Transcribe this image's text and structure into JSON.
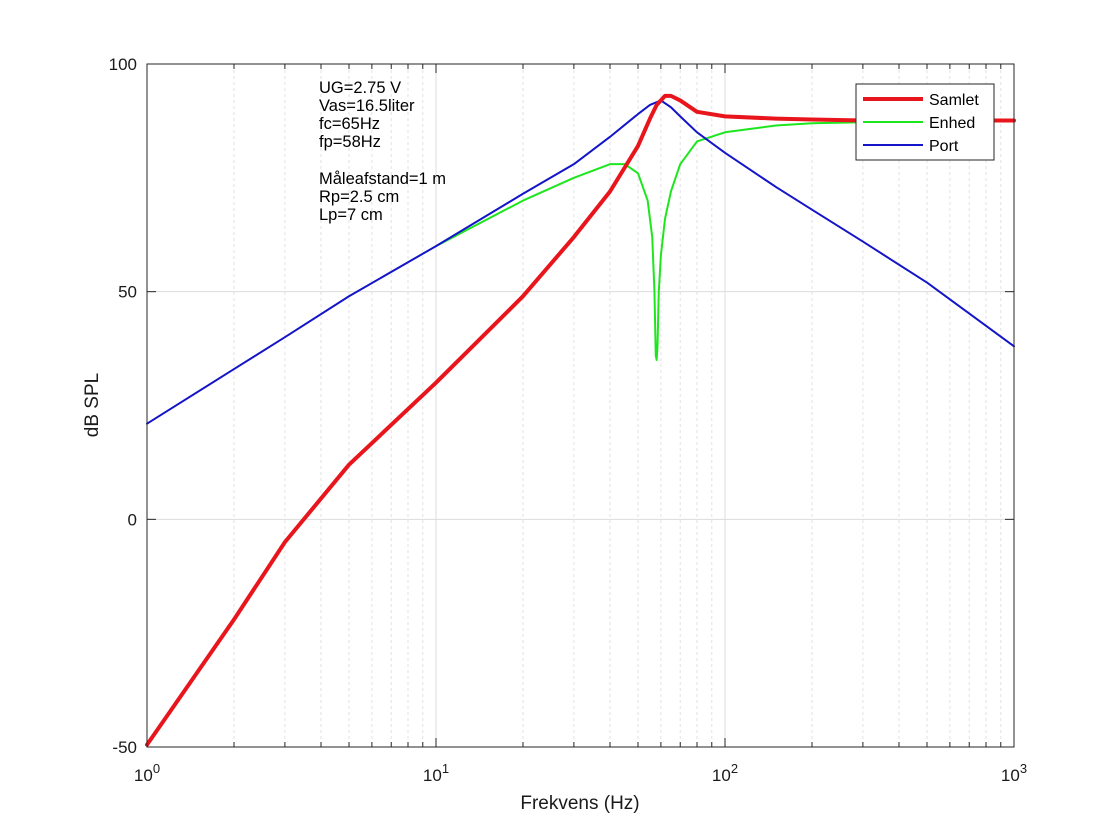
{
  "chart_data": {
    "type": "line",
    "title": "",
    "xlabel": "Frekvens (Hz)",
    "ylabel": "dB SPL",
    "xscale": "log",
    "xlim": [
      1,
      1000
    ],
    "ylim": [
      -50,
      100
    ],
    "grid": true,
    "x_ticks": [
      {
        "base": "10",
        "exp": "0"
      },
      {
        "base": "10",
        "exp": "1"
      },
      {
        "base": "10",
        "exp": "2"
      },
      {
        "base": "10",
        "exp": "3"
      }
    ],
    "y_ticks": [
      "-50",
      "0",
      "50",
      "100"
    ],
    "legend_position": "top-right",
    "annotations": [
      "UG=2.75 V",
      "Vas=16.5liter",
      "fc=65Hz",
      "fp=58Hz",
      "",
      "Måleafstand=1 m",
      "Rp=2.5 cm",
      "Lp=7 cm"
    ],
    "series": [
      {
        "name": "Samlet",
        "color": "#e8161c",
        "points": [
          [
            1,
            -49.5
          ],
          [
            2,
            -22
          ],
          [
            3,
            -5
          ],
          [
            5,
            12
          ],
          [
            10,
            30
          ],
          [
            20,
            49
          ],
          [
            30,
            62
          ],
          [
            40,
            72
          ],
          [
            50,
            82
          ],
          [
            55,
            88
          ],
          [
            58,
            91
          ],
          [
            62,
            93
          ],
          [
            65,
            93
          ],
          [
            70,
            92
          ],
          [
            80,
            89.5
          ],
          [
            100,
            88.5
          ],
          [
            150,
            88
          ],
          [
            200,
            87.8
          ],
          [
            300,
            87.6
          ],
          [
            500,
            87.6
          ],
          [
            1000,
            87.6
          ]
        ]
      },
      {
        "name": "Enhed",
        "color": "#1ee61e",
        "points": [
          [
            10,
            60
          ],
          [
            20,
            70
          ],
          [
            30,
            75
          ],
          [
            40,
            78
          ],
          [
            45,
            78
          ],
          [
            50,
            76
          ],
          [
            54,
            70
          ],
          [
            56,
            62
          ],
          [
            57,
            50
          ],
          [
            57.6,
            36
          ],
          [
            58,
            35
          ],
          [
            58.4,
            38
          ],
          [
            59,
            50
          ],
          [
            60,
            58
          ],
          [
            62,
            66
          ],
          [
            65,
            72
          ],
          [
            70,
            78
          ],
          [
            80,
            83
          ],
          [
            100,
            85
          ],
          [
            150,
            86.5
          ],
          [
            200,
            87
          ],
          [
            300,
            87.2
          ],
          [
            500,
            87.4
          ],
          [
            1000,
            87.6
          ]
        ]
      },
      {
        "name": "Port",
        "color": "#1414c8",
        "points": [
          [
            1,
            21
          ],
          [
            2,
            33
          ],
          [
            3,
            40
          ],
          [
            5,
            49
          ],
          [
            10,
            60
          ],
          [
            20,
            71.5
          ],
          [
            30,
            78
          ],
          [
            40,
            84
          ],
          [
            50,
            89
          ],
          [
            55,
            91
          ],
          [
            60,
            92
          ],
          [
            65,
            90.5
          ],
          [
            70,
            88.5
          ],
          [
            80,
            85
          ],
          [
            100,
            80.5
          ],
          [
            150,
            73
          ],
          [
            200,
            68
          ],
          [
            300,
            61
          ],
          [
            500,
            52
          ],
          [
            1000,
            38
          ]
        ]
      }
    ]
  }
}
